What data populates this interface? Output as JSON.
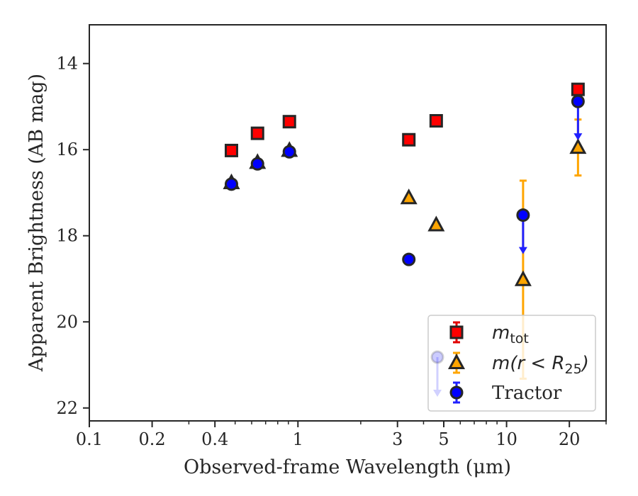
{
  "chart_data": {
    "type": "scatter",
    "title": "",
    "xlabel": "Observed-frame Wavelength (μm)",
    "ylabel": "Apparent Brightness (AB mag)",
    "xscale": "log",
    "xlim": [
      0.1,
      30
    ],
    "ylim": [
      22.3,
      13.1
    ],
    "y_inverted": true,
    "x_ticks": [
      {
        "value": 0.1,
        "label": "0.1"
      },
      {
        "value": 0.2,
        "label": "0.2"
      },
      {
        "value": 0.4,
        "label": "0.4"
      },
      {
        "value": 1,
        "label": "1"
      },
      {
        "value": 3,
        "label": "3"
      },
      {
        "value": 5,
        "label": "5"
      },
      {
        "value": 10,
        "label": "10"
      },
      {
        "value": 20,
        "label": "20"
      }
    ],
    "y_ticks": [
      {
        "value": 14,
        "label": "14"
      },
      {
        "value": 16,
        "label": "16"
      },
      {
        "value": 18,
        "label": "18"
      },
      {
        "value": 20,
        "label": "20"
      },
      {
        "value": 22,
        "label": "22"
      }
    ],
    "grid": false,
    "legend_position": "bottom-right",
    "series": [
      {
        "name": "m_tot",
        "marker": "square",
        "color": "#ff0000",
        "errcolor": "#e00000",
        "points": [
          {
            "x": 0.48,
            "y": 16.02,
            "err": 0.04
          },
          {
            "x": 0.64,
            "y": 15.62,
            "err": 0.04
          },
          {
            "x": 0.91,
            "y": 15.35,
            "err": 0.04
          },
          {
            "x": 3.4,
            "y": 15.77,
            "err": 0.04
          },
          {
            "x": 4.6,
            "y": 15.33,
            "err": 0.04
          },
          {
            "x": 22,
            "y": 14.6,
            "err": 0.04
          }
        ]
      },
      {
        "name": "m(r < R25)",
        "marker": "triangle",
        "color": "#ffa500",
        "errcolor": "#ffa500",
        "points": [
          {
            "x": 0.48,
            "y": 16.77,
            "err": 0.04
          },
          {
            "x": 0.64,
            "y": 16.3,
            "err": 0.04
          },
          {
            "x": 0.91,
            "y": 16.02,
            "err": 0.04
          },
          {
            "x": 3.4,
            "y": 17.12,
            "err": 0.04
          },
          {
            "x": 4.6,
            "y": 17.75,
            "err": 0.04
          },
          {
            "x": 12,
            "y": 19.02,
            "err": 2.3
          },
          {
            "x": 22,
            "y": 15.95,
            "err": 0.65
          }
        ]
      },
      {
        "name": "Tractor",
        "marker": "circle",
        "color": "#0000ff",
        "errcolor": "#2020ff",
        "points": [
          {
            "x": 0.48,
            "y": 16.8,
            "err": 0.04
          },
          {
            "x": 0.64,
            "y": 16.33,
            "err": 0.04
          },
          {
            "x": 0.91,
            "y": 16.05,
            "err": 0.04
          },
          {
            "x": 3.4,
            "y": 18.55,
            "err": 0.08
          },
          {
            "x": 12,
            "y": 17.52,
            "upper_limit": true
          },
          {
            "x": 22,
            "y": 14.88,
            "upper_limit": true
          }
        ]
      }
    ],
    "legend": {
      "entries": [
        {
          "series": 0,
          "math": "m",
          "sub": "tot"
        },
        {
          "series": 1,
          "math": "m(r < R",
          "sub": "25",
          "tail": ")"
        },
        {
          "series": 2,
          "text": "Tractor"
        }
      ]
    }
  }
}
